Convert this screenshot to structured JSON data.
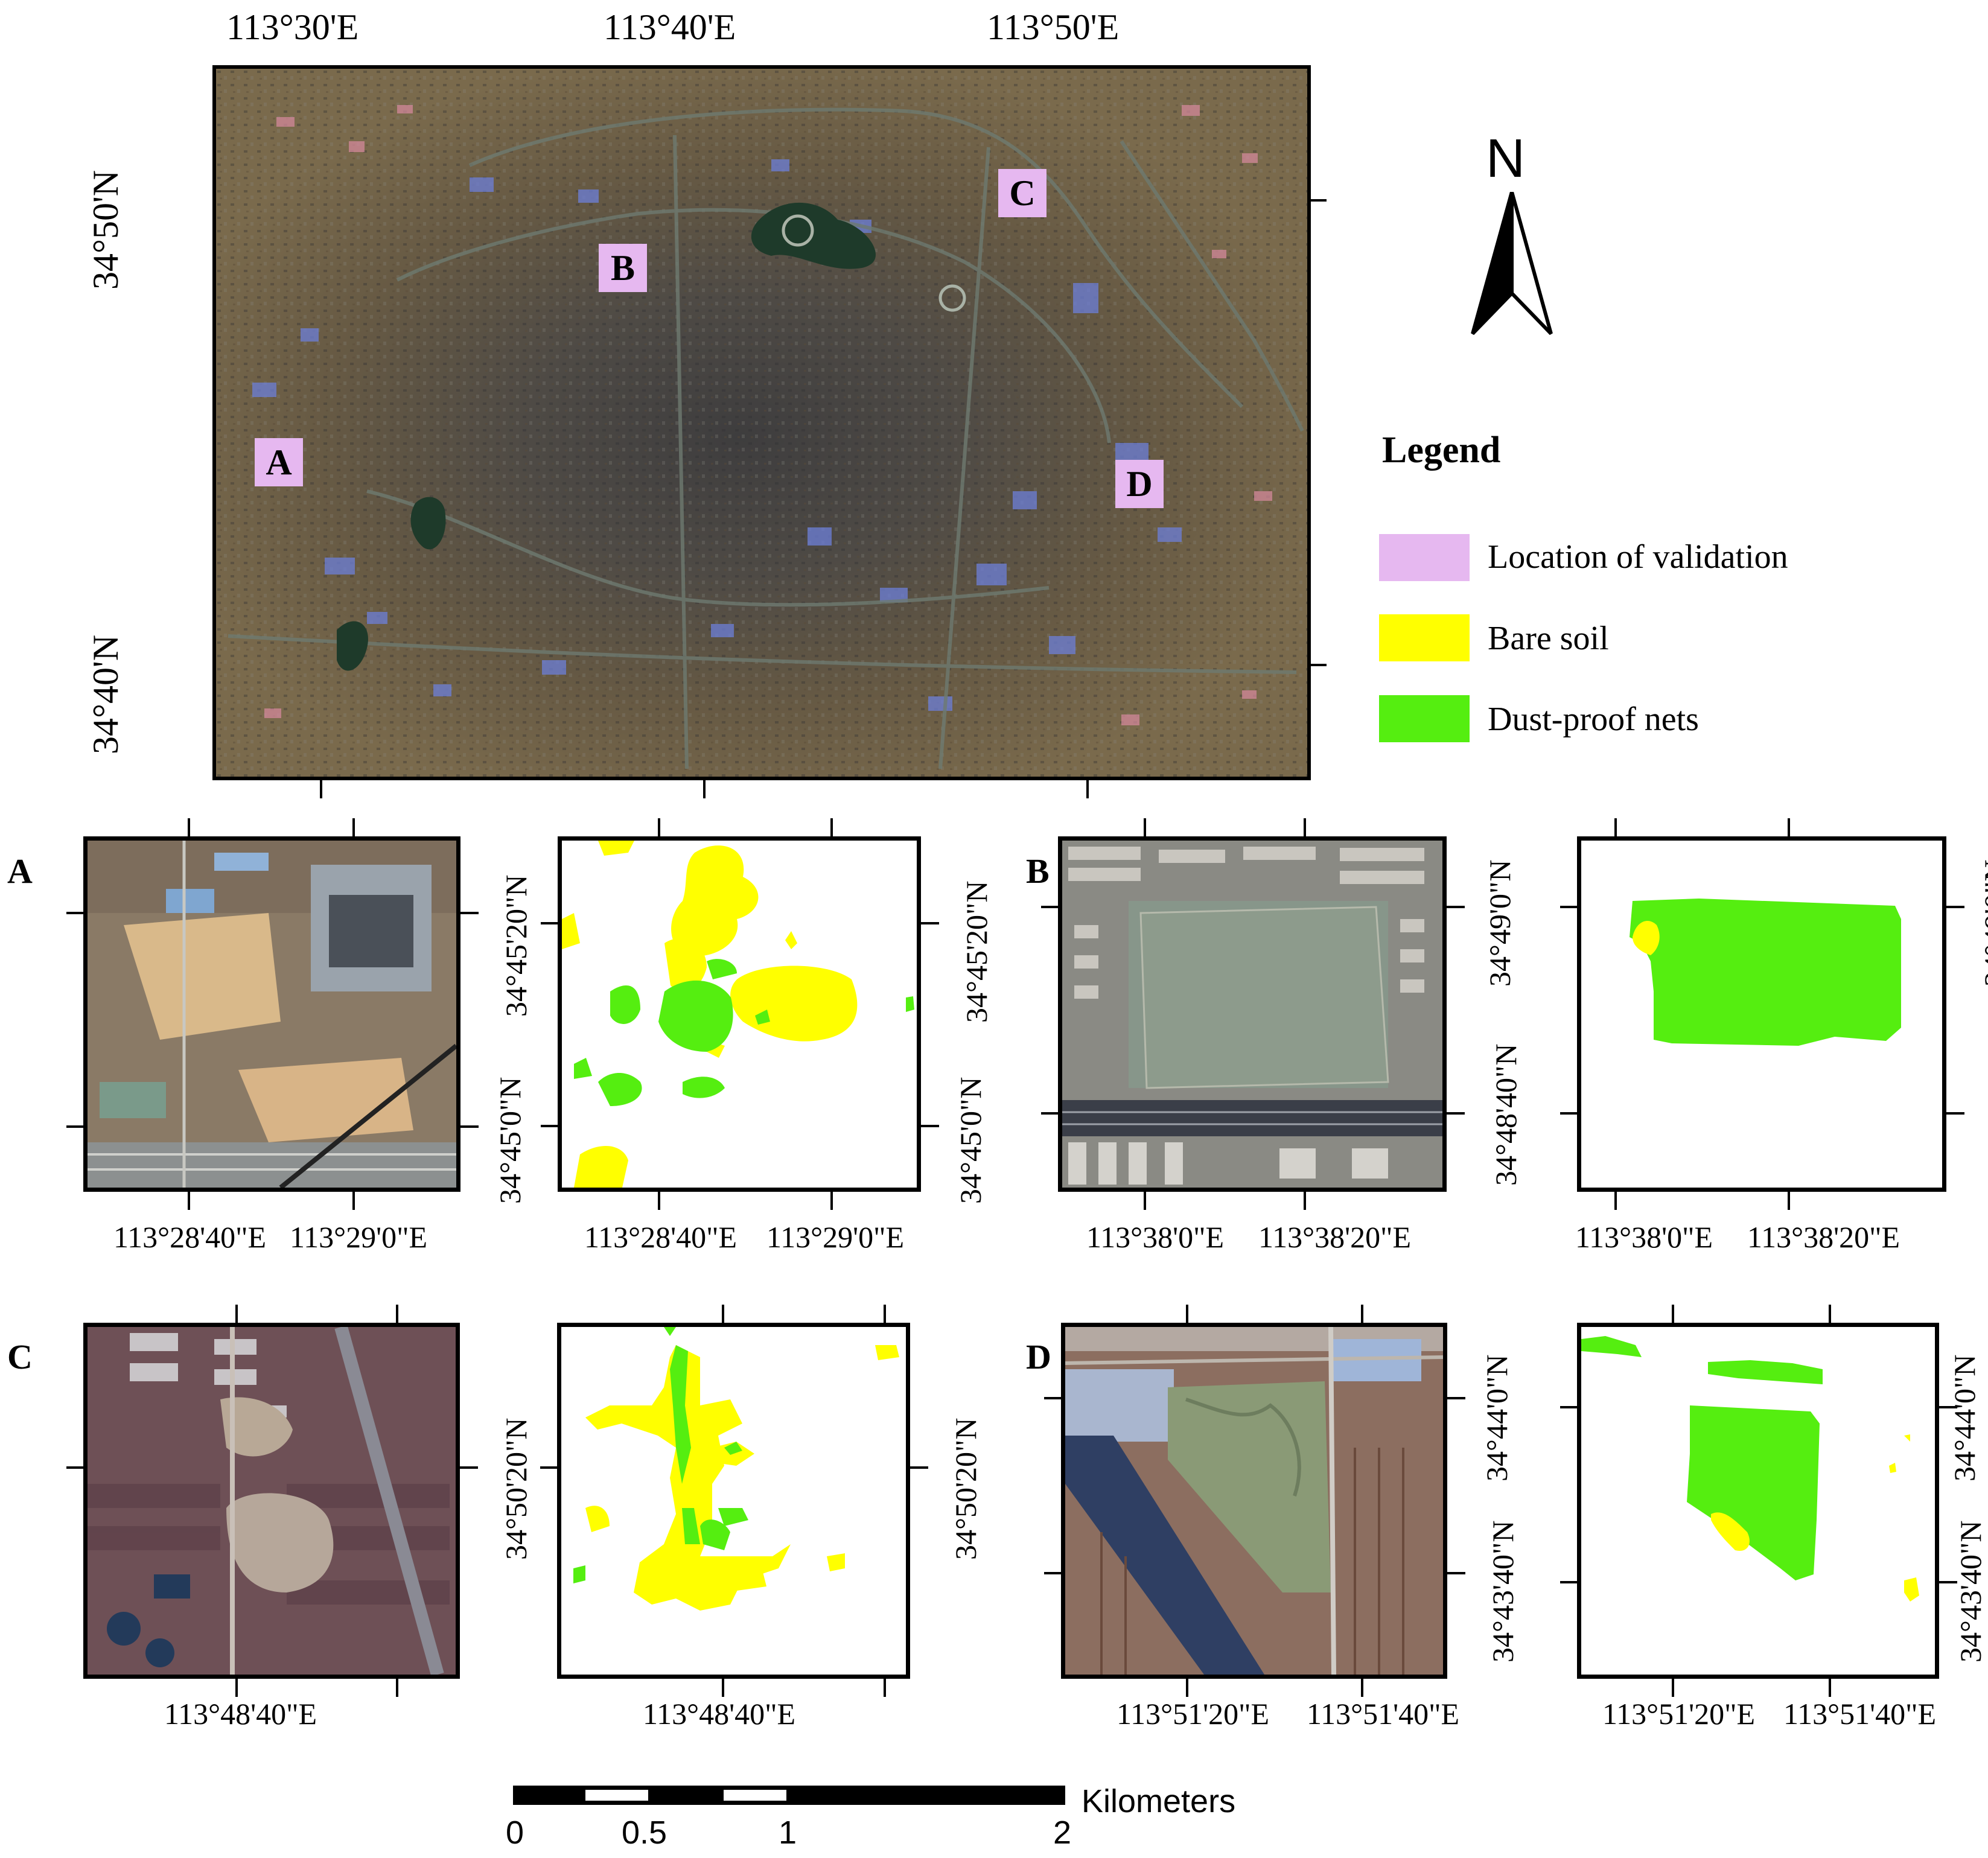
{
  "main_map": {
    "top_labels": [
      "113°30'E",
      "113°40'E",
      "113°50'E"
    ],
    "left_labels": [
      "34°50'N",
      "34°40'N"
    ],
    "sites": [
      {
        "label": "A"
      },
      {
        "label": "B"
      },
      {
        "label": "C"
      },
      {
        "label": "D"
      }
    ]
  },
  "north_arrow": {
    "label": "N"
  },
  "legend": {
    "title": "Legend",
    "items": [
      {
        "label": "Location of validation",
        "color": "#e6b8f0"
      },
      {
        "label": "Bare soil",
        "color": "#ffff00"
      },
      {
        "label": "Dust-proof nets",
        "color": "#55ee10"
      }
    ]
  },
  "panels": {
    "A": {
      "letter": "A",
      "x_labels": [
        "113°28'40\"E",
        "113°29'0\"E"
      ],
      "y_labels": [
        "34°45'20\"N",
        "34°45'0\"N"
      ]
    },
    "B": {
      "letter": "B",
      "x_labels": [
        "113°38'0\"E",
        "113°38'20\"E"
      ],
      "y_labels": [
        "34°49'0\"N",
        "34°48'40\"N"
      ]
    },
    "C": {
      "letter": "C",
      "x_labels": [
        "113°48'40\"E"
      ],
      "y_labels": [
        "34°50'20\"N"
      ]
    },
    "D": {
      "letter": "D",
      "x_labels": [
        "113°51'20\"E",
        "113°51'40\"E"
      ],
      "y_labels": [
        "34°44'0\"N",
        "34°43'40\"N"
      ]
    }
  },
  "scale_bar": {
    "unit": "Kilometers",
    "ticks": [
      "0",
      "0.5",
      "1",
      "2"
    ]
  },
  "colors": {
    "bare_soil": "#ffff00",
    "dust_proof_nets": "#55ee10",
    "validation": "#e6b8f0"
  }
}
